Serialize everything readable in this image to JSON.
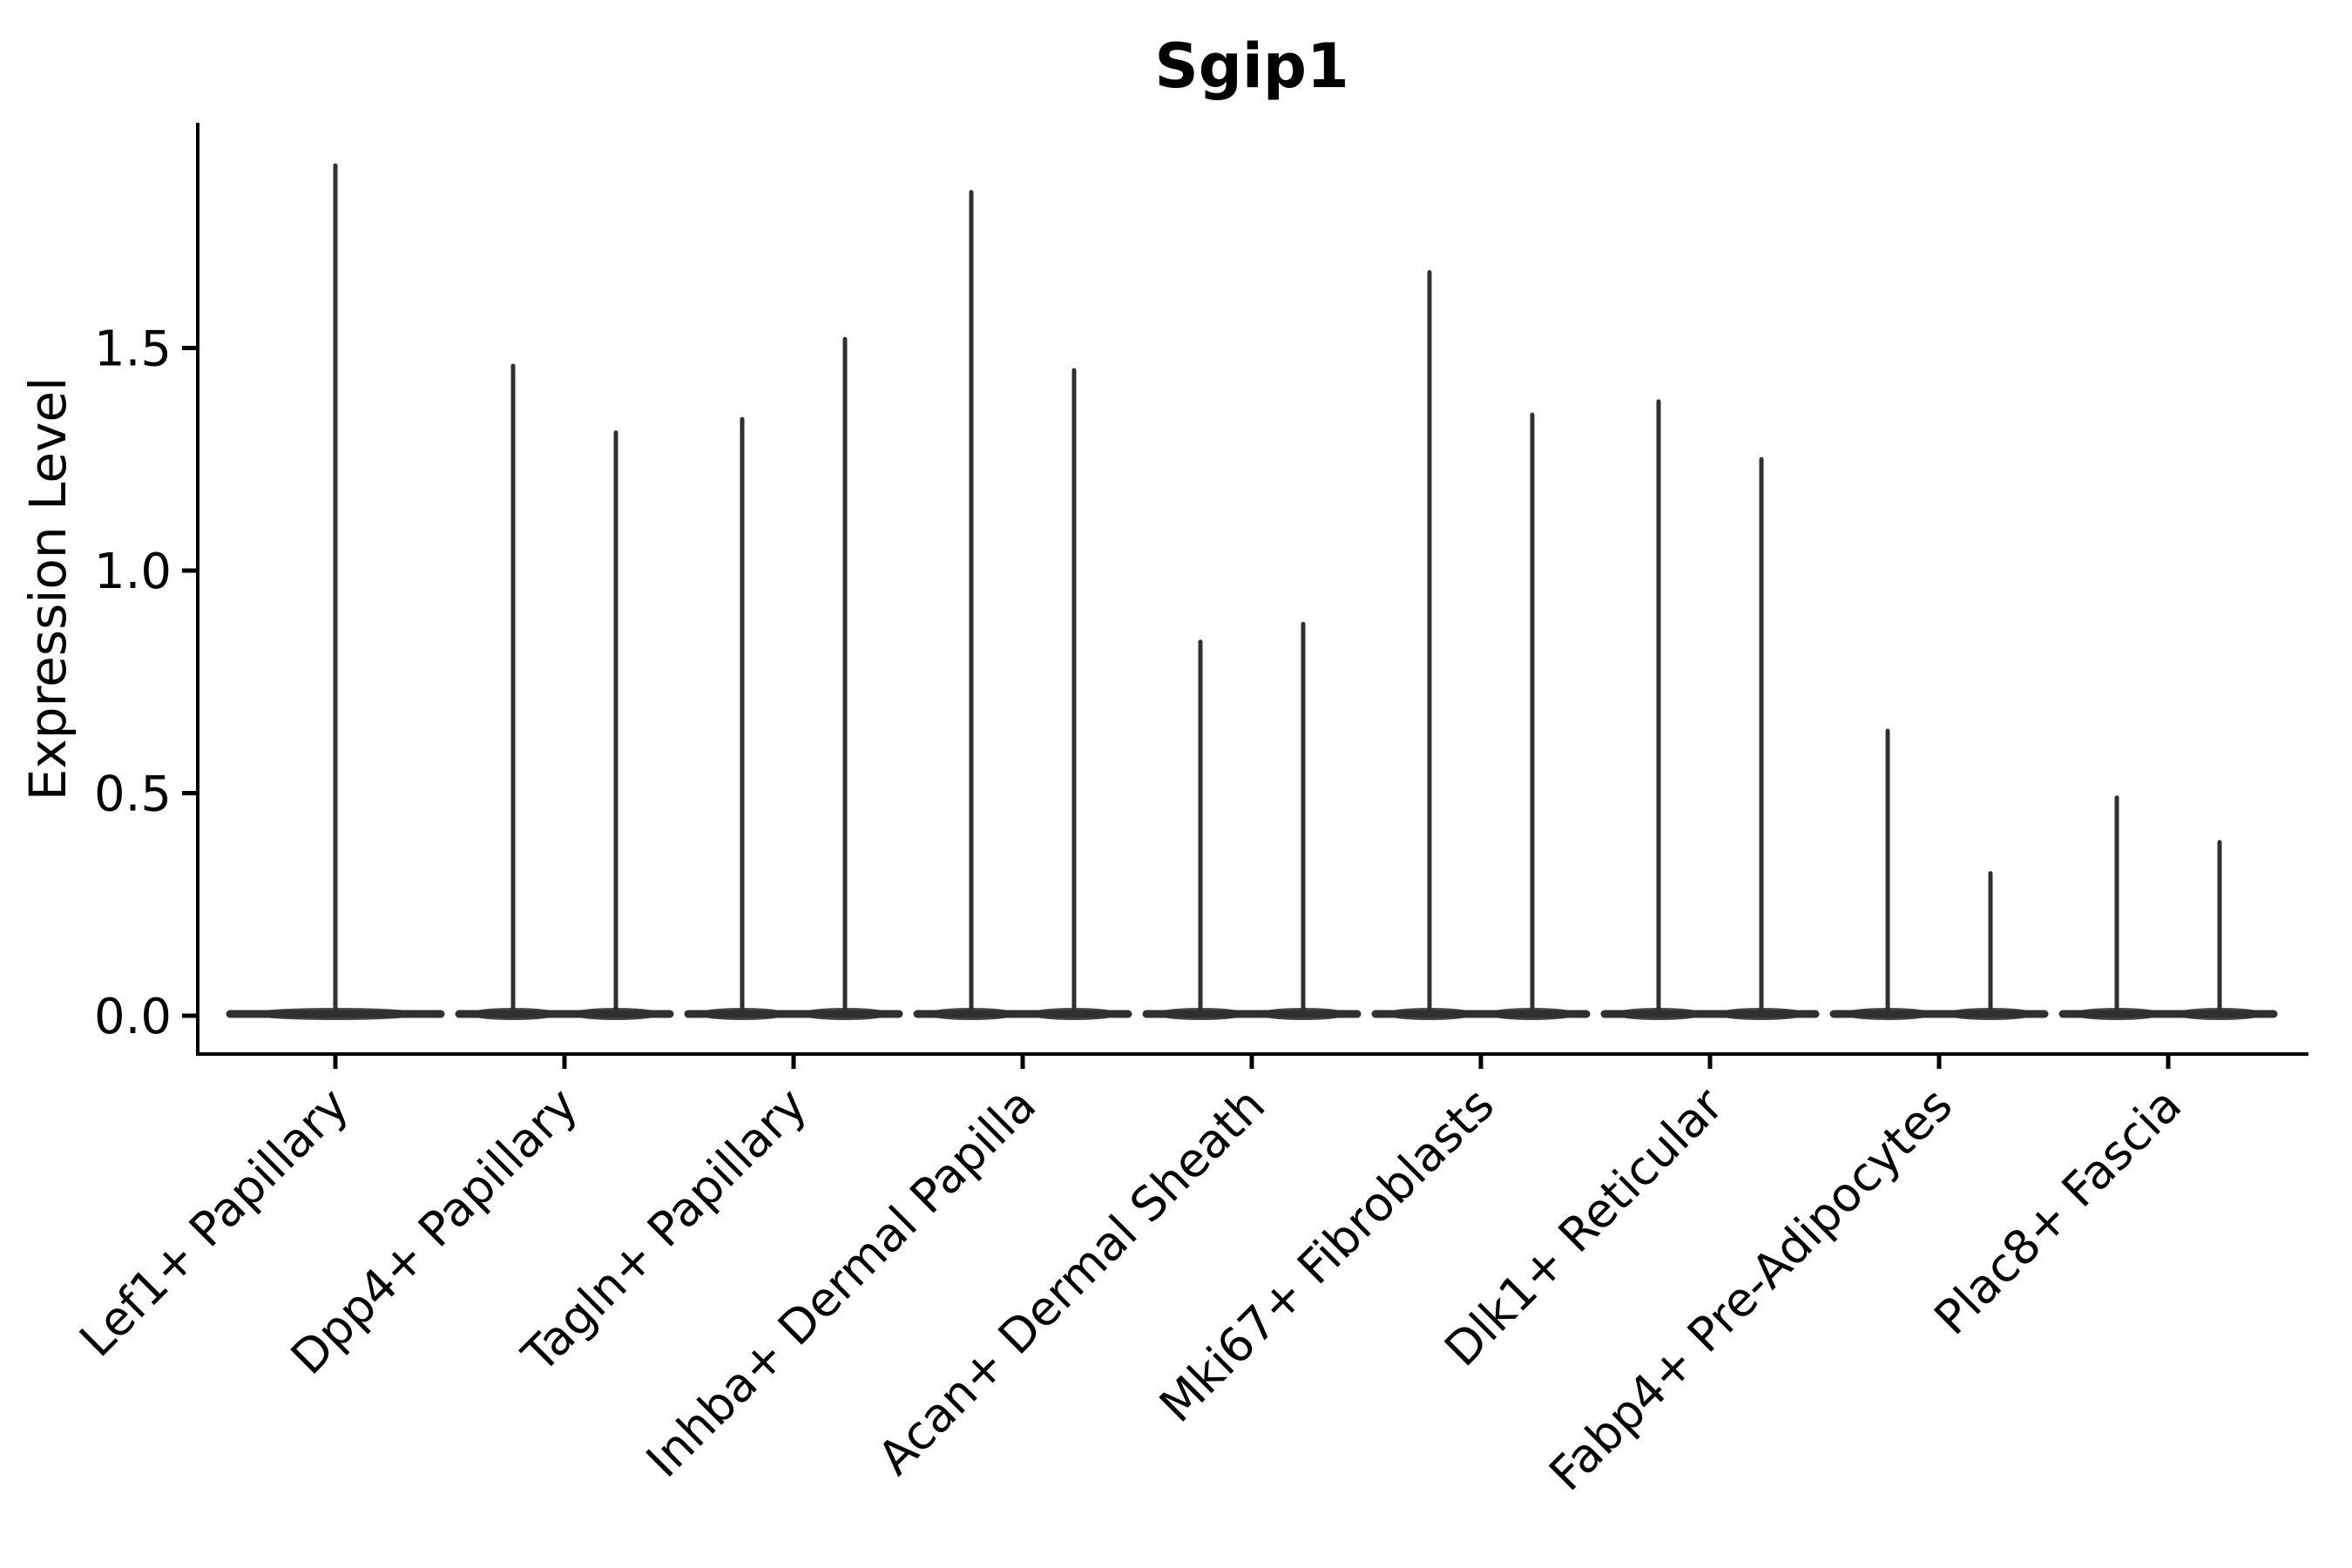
{
  "chart_data": {
    "type": "violin",
    "title": "Sgip1",
    "xlabel": "",
    "ylabel": "Expression Level",
    "categories": [
      "Lef1+ Papillary",
      "Dpp4+ Papillary",
      "Tagln+ Papillary",
      "Inhba+ Dermal Papilla",
      "Acan+ Dermal Sheath",
      "Mki67+ Fibroblasts",
      "Dlk1+ Reticular",
      "Fabp4+ Pre-Adipocytes",
      "Plac8+ Fascia"
    ],
    "violin_max_values": [
      [
        1.91
      ],
      [
        1.46,
        1.31
      ],
      [
        1.34,
        1.52
      ],
      [
        1.85,
        1.45
      ],
      [
        0.84,
        0.88
      ],
      [
        1.67,
        1.35
      ],
      [
        1.38,
        1.25
      ],
      [
        0.64,
        0.32
      ],
      [
        0.49,
        0.39
      ]
    ],
    "baseline_value": 0.0,
    "yticks": [
      0.0,
      0.5,
      1.0,
      1.5
    ],
    "ytick_labels": [
      "0.0",
      "0.5",
      "1.0",
      "1.5"
    ],
    "ylim": [
      -0.09,
      2.01
    ],
    "grid": false,
    "legend": "none",
    "colors": {
      "violin": "#303030",
      "axis": "#000000",
      "background": "#ffffff"
    }
  }
}
